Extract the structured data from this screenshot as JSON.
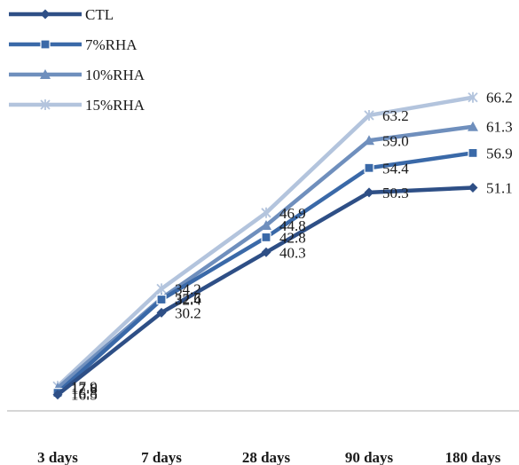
{
  "chart_data": {
    "type": "line",
    "categories": [
      "3 days",
      "7 days",
      "28 days",
      "90 days",
      "180 days"
    ],
    "series": [
      {
        "name": "CTL",
        "values": [
          16.5,
          30.2,
          40.3,
          50.3,
          51.1
        ],
        "color": "#2e4f86",
        "marker": "diamond"
      },
      {
        "name": "7%RHA",
        "values": [
          16.8,
          32.4,
          42.8,
          54.4,
          56.9
        ],
        "color": "#3a69a8",
        "marker": "square"
      },
      {
        "name": "10%RHA",
        "values": [
          17.6,
          32.6,
          44.8,
          59.0,
          61.3
        ],
        "color": "#6f8fbd",
        "marker": "triangle"
      },
      {
        "name": "15%RHA",
        "values": [
          17.9,
          34.2,
          46.9,
          63.2,
          66.2
        ],
        "color": "#b3c4dd",
        "marker": "star"
      }
    ],
    "data_labels": [
      [
        "16.5",
        "30.2",
        "40.3",
        "50.3",
        "51.1"
      ],
      [
        "16.8",
        "32.4",
        "42.8",
        "54.4",
        "56.9"
      ],
      [
        "17.6",
        "32.6",
        "44.8",
        "59.0",
        "61.3"
      ],
      [
        "17.9",
        "34.2",
        "46.9",
        "63.2",
        "66.2"
      ]
    ],
    "title": "",
    "xlabel": "",
    "ylabel": "",
    "legend_position": "top-left",
    "grid": false
  }
}
